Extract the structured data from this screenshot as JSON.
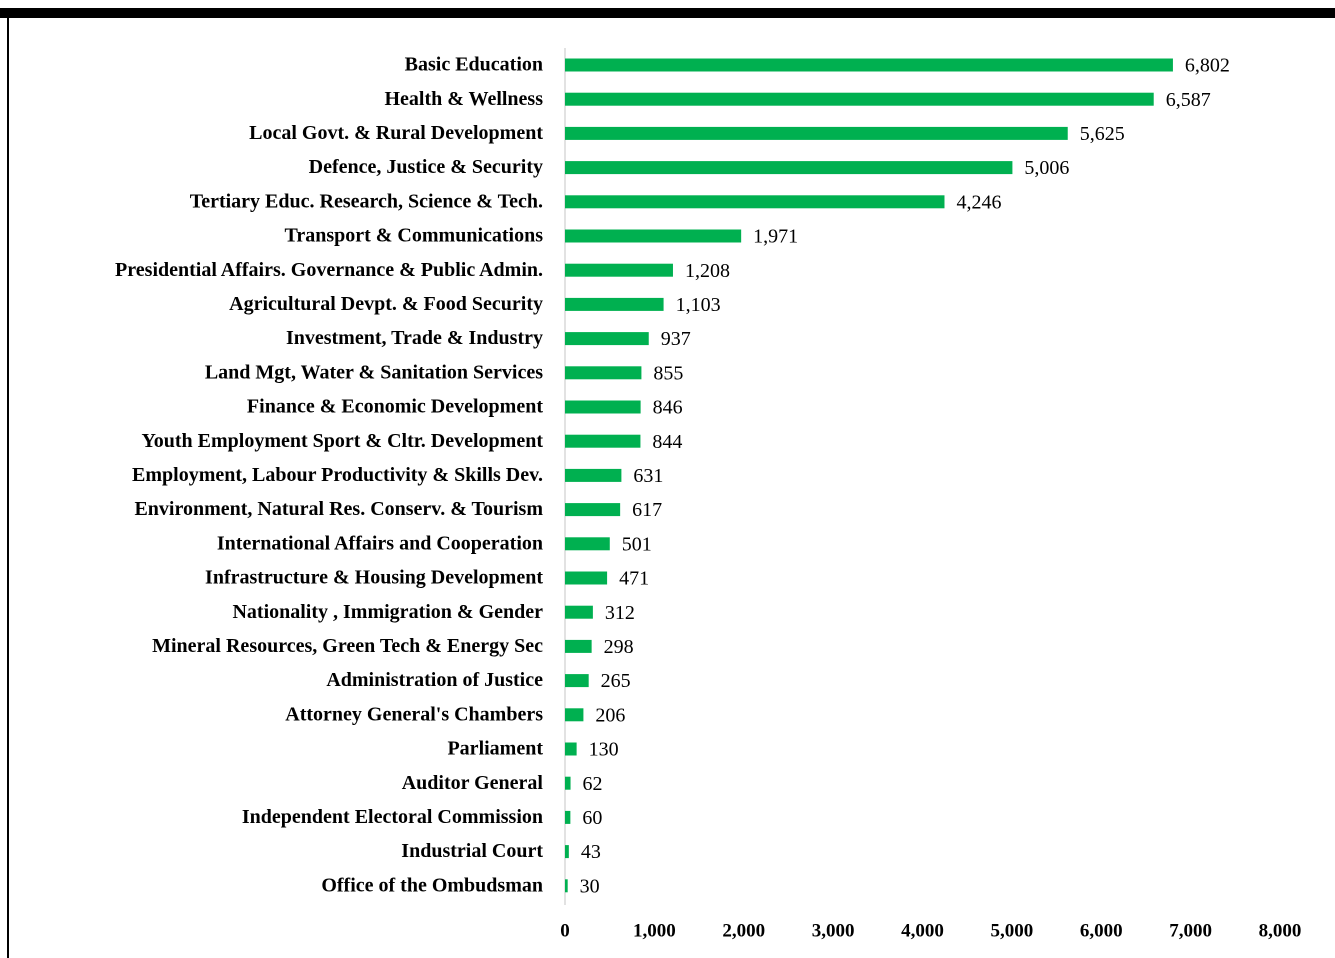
{
  "chart_data": {
    "type": "bar",
    "orientation": "horizontal",
    "color": "#00b050",
    "categories": [
      "Basic Education",
      "Health & Wellness",
      "Local Govt. & Rural Development",
      "Defence, Justice & Security",
      "Tertiary Educ. Research, Science & Tech.",
      "Transport & Communications",
      "Presidential Affairs. Governance & Public Admin.",
      "Agricultural Devpt. & Food Security",
      "Investment, Trade & Industry",
      "Land Mgt, Water & Sanitation Services",
      "Finance & Economic Development",
      "Youth Employment Sport & Cltr. Development",
      "Employment, Labour Productivity  & Skills Dev.",
      "Environment, Natural Res. Conserv. & Tourism",
      "International Affairs and Cooperation",
      "Infrastructure & Housing Development",
      "Nationality , Immigration & Gender",
      "Mineral Resources, Green Tech & Energy Sec",
      "Administration of Justice",
      "Attorney General's Chambers",
      "Parliament",
      "Auditor General",
      "Independent Electoral Commission",
      "Industrial Court",
      "Office of the Ombudsman"
    ],
    "values": [
      6802,
      6587,
      5625,
      5006,
      4246,
      1971,
      1208,
      1103,
      937,
      855,
      846,
      844,
      631,
      617,
      501,
      471,
      312,
      298,
      265,
      206,
      130,
      62,
      60,
      43,
      30
    ],
    "value_labels": [
      "6,802",
      "6,587",
      "5,625",
      "5,006",
      "4,246",
      "1,971",
      "1,208",
      "1,103",
      "937",
      "855",
      "846",
      "844",
      "631",
      "617",
      "501",
      "471",
      "312",
      "298",
      "265",
      "206",
      "130",
      "62",
      "60",
      "43",
      "30"
    ],
    "xlim": [
      0,
      8000
    ],
    "xticks": [
      0,
      {
        "value": 1000,
        "label": "1,000"
      },
      {
        "value": 2000,
        "label": "2,000"
      },
      {
        "value": 3000,
        "label": "3,000"
      },
      {
        "value": 4000,
        "label": "4,000"
      },
      {
        "value": 5000,
        "label": "5,000"
      },
      {
        "value": 6000,
        "label": "6,000"
      },
      {
        "value": 7000,
        "label": "7,000"
      },
      {
        "value": 8000,
        "label": "8,000"
      }
    ]
  }
}
